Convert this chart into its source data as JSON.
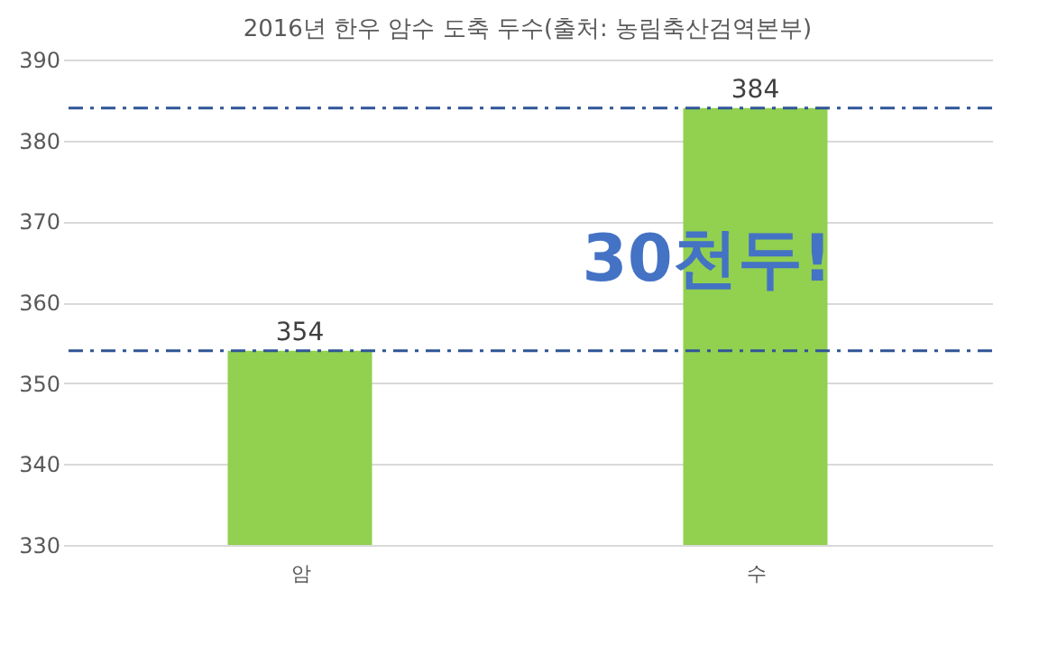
{
  "chart_data": {
    "type": "bar",
    "title": "2016년 한우 암수 도축 두수(출처: 농림축산검역본부)",
    "categories": [
      "암",
      "수"
    ],
    "values": [
      354,
      384
    ],
    "color": "#92d050",
    "ylim": [
      330,
      390
    ],
    "yticks": [
      330,
      340,
      350,
      360,
      370,
      380,
      390
    ],
    "grid": "y",
    "data_labels": true,
    "ref_lines": [
      {
        "axis": "y",
        "value": 354,
        "color": "#2f5597",
        "line_style": "dashed"
      },
      {
        "axis": "y",
        "value": 384,
        "color": "#2f5597",
        "line_style": "dashed"
      }
    ],
    "annotations": [
      "30천두!"
    ]
  }
}
